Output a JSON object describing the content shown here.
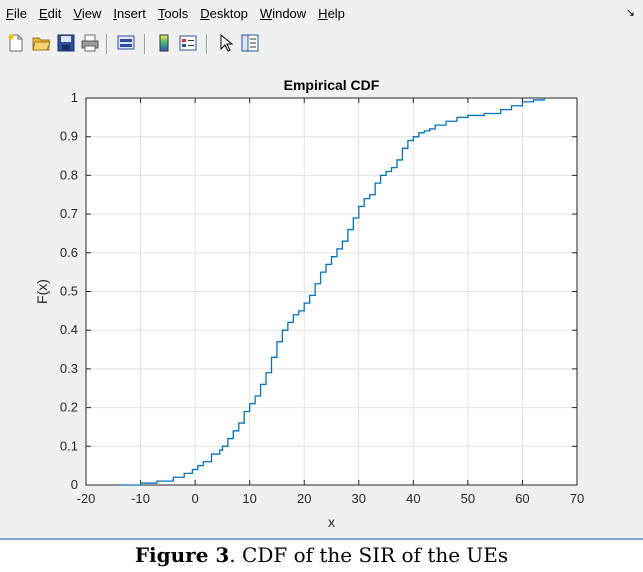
{
  "menu": {
    "items": [
      {
        "mnemonic": "F",
        "rest": "ile"
      },
      {
        "mnemonic": "E",
        "rest": "dit"
      },
      {
        "mnemonic": "V",
        "rest": "iew"
      },
      {
        "mnemonic": "I",
        "rest": "nsert"
      },
      {
        "mnemonic": "T",
        "rest": "ools"
      },
      {
        "mnemonic": "D",
        "rest": "esktop"
      },
      {
        "mnemonic": "W",
        "rest": "indow"
      },
      {
        "mnemonic": "H",
        "rest": "elp"
      }
    ],
    "dock_glyph": "↘"
  },
  "toolbar": {
    "icons": [
      "new-figure-icon",
      "open-file-icon",
      "save-icon",
      "print-icon",
      "link-plot-icon",
      "colorbar-icon",
      "legend-icon",
      "pointer-icon",
      "property-editor-icon"
    ]
  },
  "chart_data": {
    "type": "line",
    "title": "Empirical CDF",
    "xlabel": "x",
    "ylabel": "F(x)",
    "xlim": [
      -20,
      70
    ],
    "ylim": [
      0,
      1
    ],
    "xticks": [
      "-20",
      "-10",
      "0",
      "10",
      "20",
      "30",
      "40",
      "50",
      "60",
      "70"
    ],
    "yticks": [
      "0",
      "0.1",
      "0.2",
      "0.3",
      "0.4",
      "0.5",
      "0.6",
      "0.7",
      "0.8",
      "0.9",
      "1"
    ],
    "grid": true,
    "line_color": "#0072bd",
    "series": [
      {
        "x": [
          -14,
          -10,
          -7,
          -4,
          -2,
          -0.5,
          0.5,
          1.5,
          3,
          4.5,
          5,
          6,
          7,
          8,
          9,
          10,
          11,
          12,
          13,
          14,
          15,
          16,
          17,
          18,
          19,
          20,
          21,
          22,
          23,
          24,
          25,
          26,
          27,
          28,
          29,
          30,
          31,
          32,
          33,
          34,
          35,
          36,
          37,
          38,
          39,
          40,
          41,
          42,
          43,
          44,
          46,
          48,
          50,
          53,
          56,
          58,
          60,
          62,
          64
        ],
        "y": [
          0,
          0.005,
          0.01,
          0.02,
          0.03,
          0.04,
          0.05,
          0.06,
          0.08,
          0.09,
          0.1,
          0.12,
          0.14,
          0.16,
          0.19,
          0.21,
          0.23,
          0.26,
          0.29,
          0.33,
          0.37,
          0.4,
          0.42,
          0.44,
          0.45,
          0.47,
          0.49,
          0.52,
          0.55,
          0.57,
          0.59,
          0.61,
          0.63,
          0.66,
          0.69,
          0.72,
          0.74,
          0.75,
          0.78,
          0.8,
          0.81,
          0.82,
          0.84,
          0.87,
          0.89,
          0.9,
          0.91,
          0.915,
          0.92,
          0.93,
          0.94,
          0.95,
          0.955,
          0.96,
          0.97,
          0.98,
          0.99,
          0.995,
          1.0
        ]
      }
    ]
  },
  "caption": {
    "bold": "Figure 3",
    "text": ". CDF of the SIR of the UEs"
  }
}
